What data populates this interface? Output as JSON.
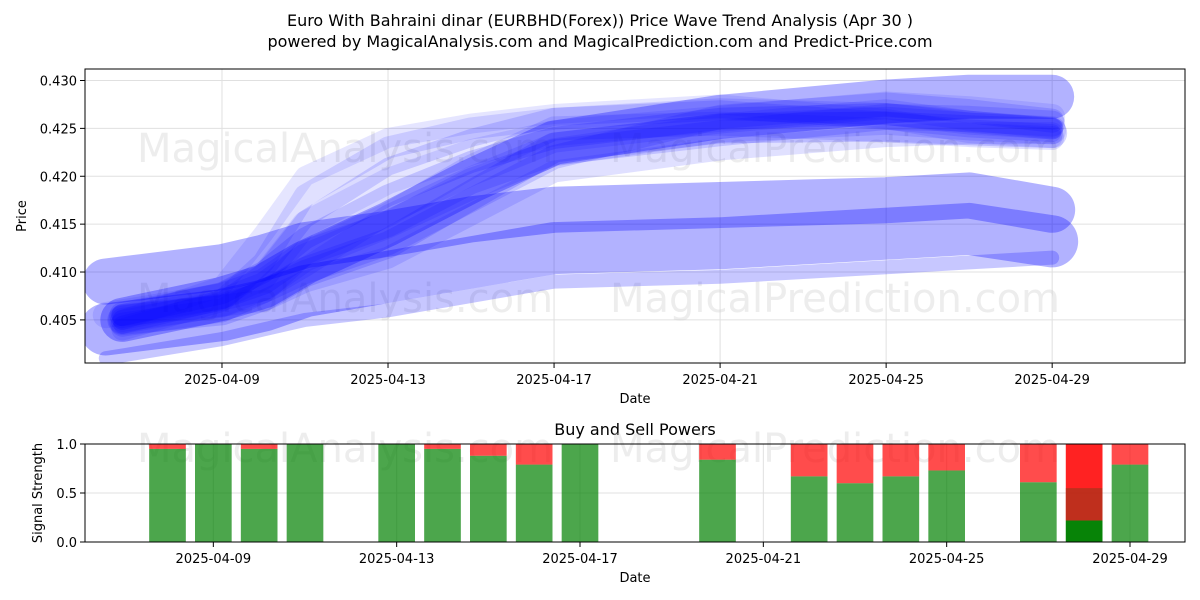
{
  "title_line1": "Euro With Bahraini dinar (EURBHD(Forex)) Price Wave Trend Analysis (Apr 30 )",
  "title_line2": "powered by MagicalAnalysis.com and MagicalPrediction.com and Predict-Price.com",
  "watermarks": [
    "MagicalAnalysis.com",
    "MagicalPrediction.com"
  ],
  "colors": {
    "wave": "#0000ff",
    "buy": "#008000",
    "sell": "#ff0000",
    "grid": "#e0e0e0"
  },
  "chart_data": [
    {
      "type": "area",
      "name": "price-wave",
      "title": "",
      "xlabel": "Date",
      "ylabel": "Price",
      "xlim": [
        -3.3,
        23.2
      ],
      "ylim": [
        0.4005,
        0.4312
      ],
      "x_ticks": [
        {
          "x": 0,
          "label": "2025-04-09"
        },
        {
          "x": 4,
          "label": "2025-04-13"
        },
        {
          "x": 8,
          "label": "2025-04-17"
        },
        {
          "x": 12,
          "label": "2025-04-21"
        },
        {
          "x": 16,
          "label": "2025-04-25"
        },
        {
          "x": 20,
          "label": "2025-04-29"
        }
      ],
      "y_ticks": [
        0.405,
        0.41,
        0.415,
        0.42,
        0.425,
        0.43
      ],
      "y_tick_labels": [
        "0.405",
        "0.410",
        "0.415",
        "0.420",
        "0.425",
        "0.430"
      ],
      "grid": true,
      "series": [
        {
          "name": "wave-upper-a",
          "x": [
            -2.8,
            0,
            1,
            2,
            4,
            6,
            8,
            12,
            16,
            18,
            20
          ],
          "y": [
            0.4055,
            0.4075,
            0.4095,
            0.415,
            0.4195,
            0.4225,
            0.4245,
            0.426,
            0.4275,
            0.427,
            0.4262
          ]
        },
        {
          "name": "wave-upper-b",
          "x": [
            -2.4,
            0,
            1,
            2,
            4,
            6,
            8,
            12,
            16,
            18,
            20
          ],
          "y": [
            0.404,
            0.407,
            0.411,
            0.418,
            0.423,
            0.425,
            0.426,
            0.427,
            0.4265,
            0.4255,
            0.425
          ]
        },
        {
          "name": "wave-upper-c",
          "x": [
            -2.4,
            0,
            1,
            2,
            4,
            6,
            8,
            12,
            16,
            18,
            20
          ],
          "y": [
            0.405,
            0.4085,
            0.414,
            0.42,
            0.424,
            0.4255,
            0.4265,
            0.4275,
            0.426,
            0.4245,
            0.424
          ]
        },
        {
          "name": "wave-upper-d",
          "x": [
            -2.4,
            0,
            1,
            2,
            4,
            6,
            8,
            12,
            16,
            18,
            20
          ],
          "y": [
            0.4045,
            0.407,
            0.41,
            0.4155,
            0.421,
            0.424,
            0.4262,
            0.427,
            0.4258,
            0.425,
            0.4245
          ]
        },
        {
          "name": "wave-upper-e",
          "x": [
            -2.4,
            0,
            1,
            2,
            4,
            6,
            8,
            12,
            16,
            18,
            20
          ],
          "y": [
            0.405,
            0.4065,
            0.408,
            0.412,
            0.416,
            0.421,
            0.425,
            0.4255,
            0.4248,
            0.4243,
            0.424
          ]
        },
        {
          "name": "wave-upper-f",
          "x": [
            -2.4,
            0,
            1,
            2,
            4,
            6,
            8,
            12,
            16,
            18,
            20
          ],
          "y": [
            0.405,
            0.406,
            0.4075,
            0.41,
            0.413,
            0.418,
            0.423,
            0.425,
            0.4252,
            0.4248,
            0.4245
          ]
        },
        {
          "name": "wave-upper-g",
          "x": [
            -2.4,
            0,
            1,
            2,
            4,
            6,
            8,
            12,
            16,
            18,
            20
          ],
          "y": [
            0.4055,
            0.4065,
            0.407,
            0.409,
            0.4115,
            0.416,
            0.4205,
            0.4228,
            0.4242,
            0.4245,
            0.4245
          ]
        },
        {
          "name": "wave-upper-h",
          "x": [
            -2.4,
            0,
            1,
            2,
            4,
            6,
            8,
            12,
            16,
            18,
            20
          ],
          "y": [
            0.4055,
            0.4075,
            0.409,
            0.412,
            0.415,
            0.4195,
            0.4225,
            0.4245,
            0.4262,
            0.426,
            0.4255
          ]
        },
        {
          "name": "wave-upper-i",
          "x": [
            -2.4,
            0,
            1,
            2,
            4,
            6,
            8,
            12,
            16,
            18,
            20
          ],
          "y": [
            0.405,
            0.407,
            0.408,
            0.4105,
            0.416,
            0.42,
            0.4235,
            0.4255,
            0.427,
            0.4258,
            0.425
          ]
        },
        {
          "name": "wave-upper-j",
          "x": [
            -2.4,
            0,
            1,
            2,
            4,
            6,
            8,
            12,
            16,
            18,
            20
          ],
          "y": [
            0.4045,
            0.406,
            0.408,
            0.41,
            0.413,
            0.4175,
            0.422,
            0.4262,
            0.4275,
            0.4268,
            0.4258
          ]
        },
        {
          "name": "wave-upper-k",
          "x": [
            -2.4,
            0,
            1,
            2,
            4,
            6,
            8,
            12,
            16,
            18,
            20
          ],
          "y": [
            0.405,
            0.4068,
            0.4085,
            0.4115,
            0.415,
            0.419,
            0.4225,
            0.425,
            0.4258,
            0.4252,
            0.4248
          ]
        },
        {
          "name": "wave-upper-l",
          "x": [
            -2.4,
            0,
            1,
            2,
            4,
            6,
            8,
            12,
            16,
            18,
            20
          ],
          "y": [
            0.4055,
            0.4078,
            0.41,
            0.4135,
            0.418,
            0.4215,
            0.424,
            0.426,
            0.4265,
            0.4257,
            0.425
          ]
        },
        {
          "name": "wave-upper-wide",
          "x": [
            -2.4,
            0,
            1,
            2,
            4,
            6,
            8,
            12,
            16,
            18,
            20
          ],
          "y": [
            0.405,
            0.4072,
            0.4085,
            0.411,
            0.415,
            0.4195,
            0.4235,
            0.4262,
            0.4278,
            0.4283,
            0.4283
          ]
        },
        {
          "name": "wave-mid",
          "x": [
            -2.8,
            0,
            1,
            2,
            4,
            6,
            8,
            12,
            16,
            18,
            20
          ],
          "y": [
            0.409,
            0.4105,
            0.4115,
            0.4128,
            0.414,
            0.4155,
            0.4165,
            0.417,
            0.4175,
            0.418,
            0.4165
          ]
        },
        {
          "name": "wave-lower",
          "x": [
            -2.8,
            0,
            1,
            2,
            4,
            6,
            8,
            12,
            16,
            18,
            20
          ],
          "y": [
            0.404,
            0.4055,
            0.4065,
            0.408,
            0.4095,
            0.411,
            0.4125,
            0.413,
            0.414,
            0.4145,
            0.4132
          ]
        },
        {
          "name": "wave-bottom-thin",
          "x": [
            -2.8,
            0,
            1,
            2,
            4,
            6,
            8,
            12,
            16,
            18,
            20
          ],
          "y": [
            0.401,
            0.403,
            0.404,
            0.405,
            0.406,
            0.4075,
            0.409,
            0.4095,
            0.4105,
            0.411,
            0.4115
          ]
        }
      ]
    },
    {
      "type": "bar",
      "name": "buy-sell-powers",
      "title": "Buy and Sell Powers",
      "xlabel": "Date",
      "ylabel": "Signal Strength",
      "xlim": [
        -2.8,
        21.2
      ],
      "ylim": [
        0,
        1.0
      ],
      "x_ticks": [
        {
          "x": 0,
          "label": "2025-04-09"
        },
        {
          "x": 4,
          "label": "2025-04-13"
        },
        {
          "x": 8,
          "label": "2025-04-17"
        },
        {
          "x": 12,
          "label": "2025-04-21"
        },
        {
          "x": 16,
          "label": "2025-04-25"
        },
        {
          "x": 20,
          "label": "2025-04-29"
        }
      ],
      "y_ticks": [
        0.0,
        0.5,
        1.0
      ],
      "y_tick_labels": [
        "0.0",
        "0.5",
        "1.0"
      ],
      "grid": true,
      "bars": [
        {
          "x": -1,
          "buy": 0.95,
          "sell": 0.05
        },
        {
          "x": 0,
          "buy": 1.0,
          "sell": 0.0
        },
        {
          "x": 1,
          "buy": 0.95,
          "sell": 0.05
        },
        {
          "x": 2,
          "buy": 1.0,
          "sell": 0.0
        },
        {
          "x": 4,
          "buy": 1.0,
          "sell": 0.0
        },
        {
          "x": 5,
          "buy": 0.95,
          "sell": 0.05
        },
        {
          "x": 6,
          "buy": 0.88,
          "sell": 0.12
        },
        {
          "x": 7,
          "buy": 0.79,
          "sell": 0.21
        },
        {
          "x": 8,
          "buy": 1.0,
          "sell": 0.0
        },
        {
          "x": 11,
          "buy": 0.84,
          "sell": 0.16
        },
        {
          "x": 13,
          "buy": 0.67,
          "sell": 0.33
        },
        {
          "x": 14,
          "buy": 0.6,
          "sell": 0.4
        },
        {
          "x": 15,
          "buy": 0.67,
          "sell": 0.33
        },
        {
          "x": 16,
          "buy": 0.73,
          "sell": 0.27
        },
        {
          "x": 18,
          "buy": 0.61,
          "sell": 0.39
        },
        {
          "x": 19,
          "buy": 0.22,
          "sell": 0.78,
          "strong_buy": 0.22,
          "overlay_mid": 0.55
        },
        {
          "x": 20,
          "buy": 0.79,
          "sell": 0.21
        }
      ]
    }
  ]
}
